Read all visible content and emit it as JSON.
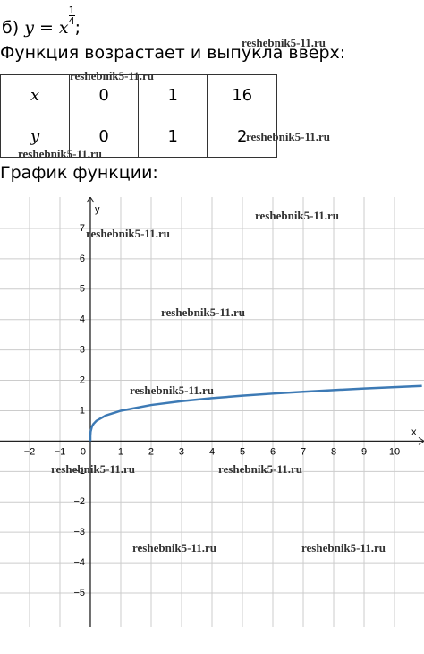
{
  "header": {
    "label": "б)",
    "formula": "y = x",
    "exponent_num": "1",
    "exponent_den": "4",
    "end": ";"
  },
  "statement": "Функция возрастает и выпукла вверх:",
  "table": {
    "rows": [
      [
        "x",
        "0",
        "1",
        "16"
      ],
      [
        "y",
        "0",
        "1",
        "2"
      ]
    ]
  },
  "graph_caption": "График функции:",
  "watermarks": [
    "reshebnik5-11.ru",
    "reshebnik5-11.ru",
    "reshebnik5-11.ru",
    "reshebnik5-11.ru",
    "reshebnik5-11.ru",
    "reshebnik5-11.ru",
    "reshebnik5-11.ru",
    "reshebnik5-11.ru",
    "reshebnik5-11.ru",
    "reshebnik5-11.ru",
    "reshebnik5-11.ru",
    "reshebnik5-11.ru"
  ],
  "chart_data": {
    "type": "line",
    "x_label": "x",
    "y_label": "y",
    "origin_label": "0",
    "x": [
      0,
      0.001,
      0.01,
      0.05,
      0.1,
      0.2,
      0.5,
      1,
      2,
      3,
      4,
      5,
      6,
      7,
      8,
      9,
      10,
      10.9
    ],
    "series": [
      {
        "name": "y = x^(1/4)",
        "color": "#3d7ab5",
        "values": [
          0,
          0.178,
          0.316,
          0.473,
          0.562,
          0.669,
          0.841,
          1,
          1.189,
          1.316,
          1.414,
          1.495,
          1.565,
          1.627,
          1.682,
          1.732,
          1.778,
          1.817
        ]
      }
    ],
    "xlim": [
      -2.97,
      10.97
    ],
    "ylim": [
      -6.12,
      8.03
    ],
    "xticks": [
      {
        "value": -2,
        "label": "−2"
      },
      {
        "value": -1,
        "label": "−1"
      },
      1,
      2,
      3,
      4,
      5,
      6,
      7,
      8,
      9,
      10
    ],
    "yticks": [
      {
        "value": -5,
        "label": "−5"
      },
      {
        "value": -4,
        "label": "−4"
      },
      {
        "value": -3,
        "label": "−3"
      },
      {
        "value": -2,
        "label": "−2"
      },
      {
        "value": -1,
        "label": "−1"
      },
      1,
      2,
      3,
      4,
      5,
      6,
      7
    ],
    "grid": true
  }
}
